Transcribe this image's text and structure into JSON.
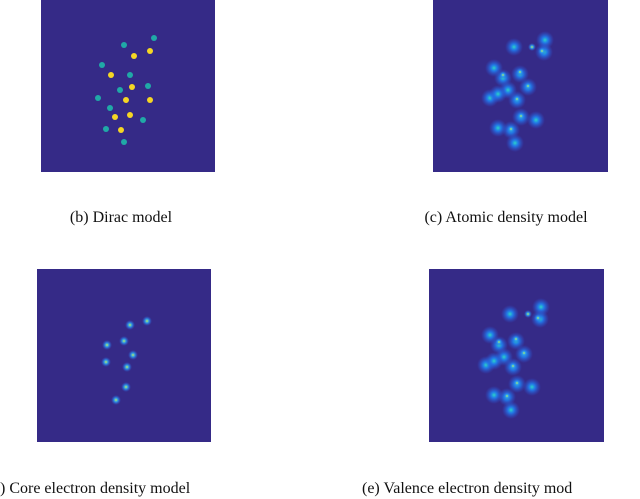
{
  "panels": [
    {
      "caption": "(b) Dirac model"
    },
    {
      "caption": "(c) Atomic density model"
    },
    {
      "caption": ") Core electron density model"
    },
    {
      "caption": "(e) Valence electron density mod"
    }
  ]
}
